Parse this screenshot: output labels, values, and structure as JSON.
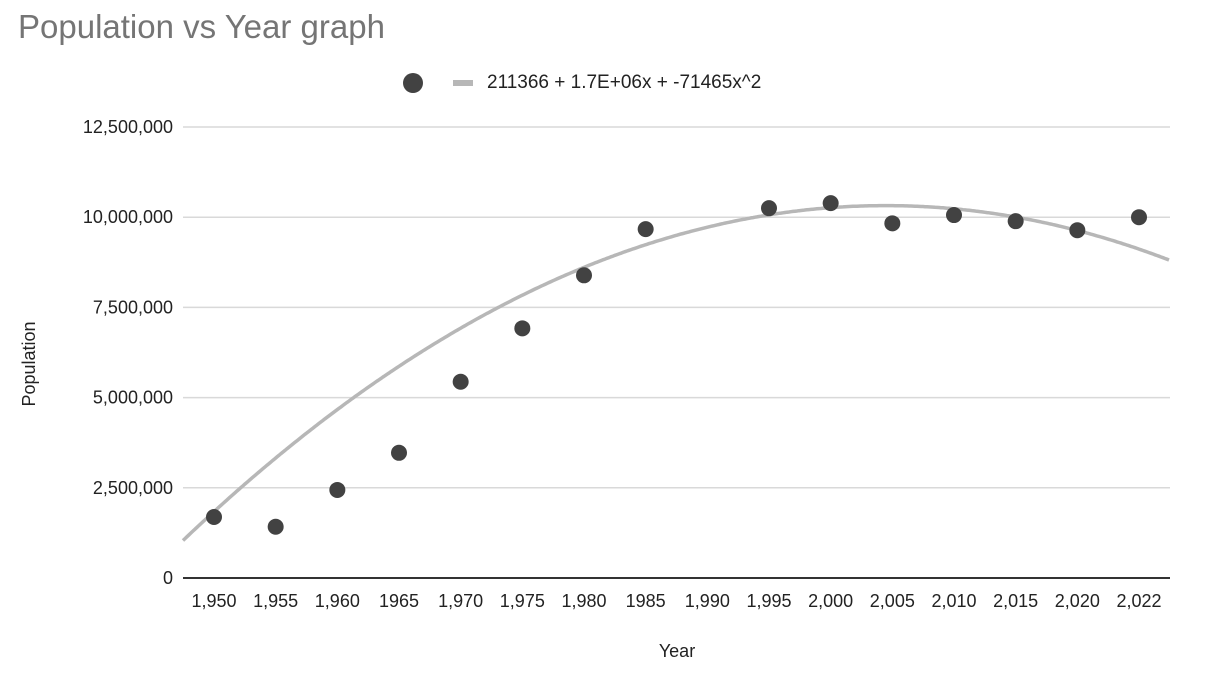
{
  "title": "Population vs Year graph",
  "legend": {
    "series_marker": "filled-circle",
    "trendline_label": "211366 + 1.7E+06x + -71465x^2"
  },
  "colors": {
    "title": "#757575",
    "points": "#424242",
    "trendline": "#b7b7b7",
    "gridline": "#d9d9d9",
    "baseline": "#333333",
    "text": "#222222"
  },
  "chart_data": {
    "type": "scatter",
    "title": "Population vs Year graph",
    "xlabel": "Year",
    "ylabel": "Population",
    "x_axis_type": "categorical",
    "categories": [
      "1,950",
      "1,955",
      "1,960",
      "1965",
      "1,970",
      "1,975",
      "1,980",
      "1985",
      "1,990",
      "1,995",
      "2,000",
      "2,005",
      "2,010",
      "2,015",
      "2,020",
      "2,022"
    ],
    "series": [
      {
        "name": "Population",
        "values": [
          1690000,
          1420000,
          2440000,
          3470000,
          5440000,
          6920000,
          8390000,
          9670000,
          null,
          10250000,
          10390000,
          9830000,
          10060000,
          9890000,
          9640000,
          10000000
        ]
      }
    ],
    "trendline": {
      "type": "polynomial",
      "degree": 2,
      "label": "211366 + 1.7E+06x + -71465x^2",
      "coefficients": [
        211366,
        1700000,
        -71465
      ]
    },
    "ylim": [
      0,
      12500000
    ],
    "yticks": [
      0,
      2500000,
      5000000,
      7500000,
      10000000,
      12500000
    ],
    "ytick_labels": [
      "0",
      "2,500,000",
      "5,000,000",
      "7,500,000",
      "10,000,000",
      "12,500,000"
    ],
    "grid": true,
    "legend_position": "top"
  }
}
